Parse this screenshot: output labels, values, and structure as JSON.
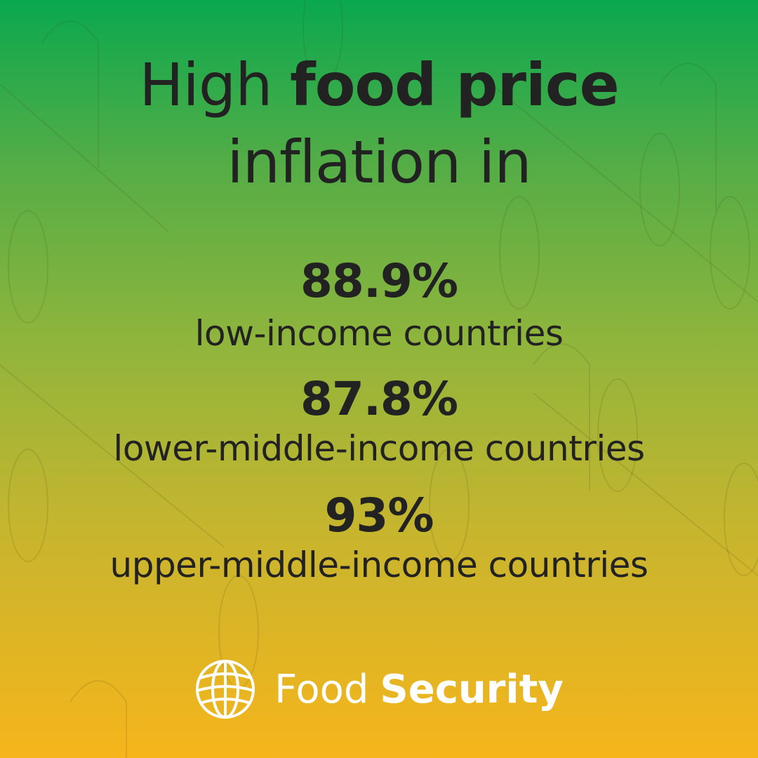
{
  "title": {
    "line1_regular": "High ",
    "line1_bold": "food price",
    "line2": "inflation in"
  },
  "stats": [
    {
      "value": "88.9%",
      "label": "low-income countries"
    },
    {
      "value": "87.8%",
      "label": "lower-middle-income countries"
    },
    {
      "value": "93%",
      "label": "upper-middle-income countries"
    }
  ],
  "footer": {
    "brand_regular": "Food",
    "brand_bold": "Security"
  }
}
